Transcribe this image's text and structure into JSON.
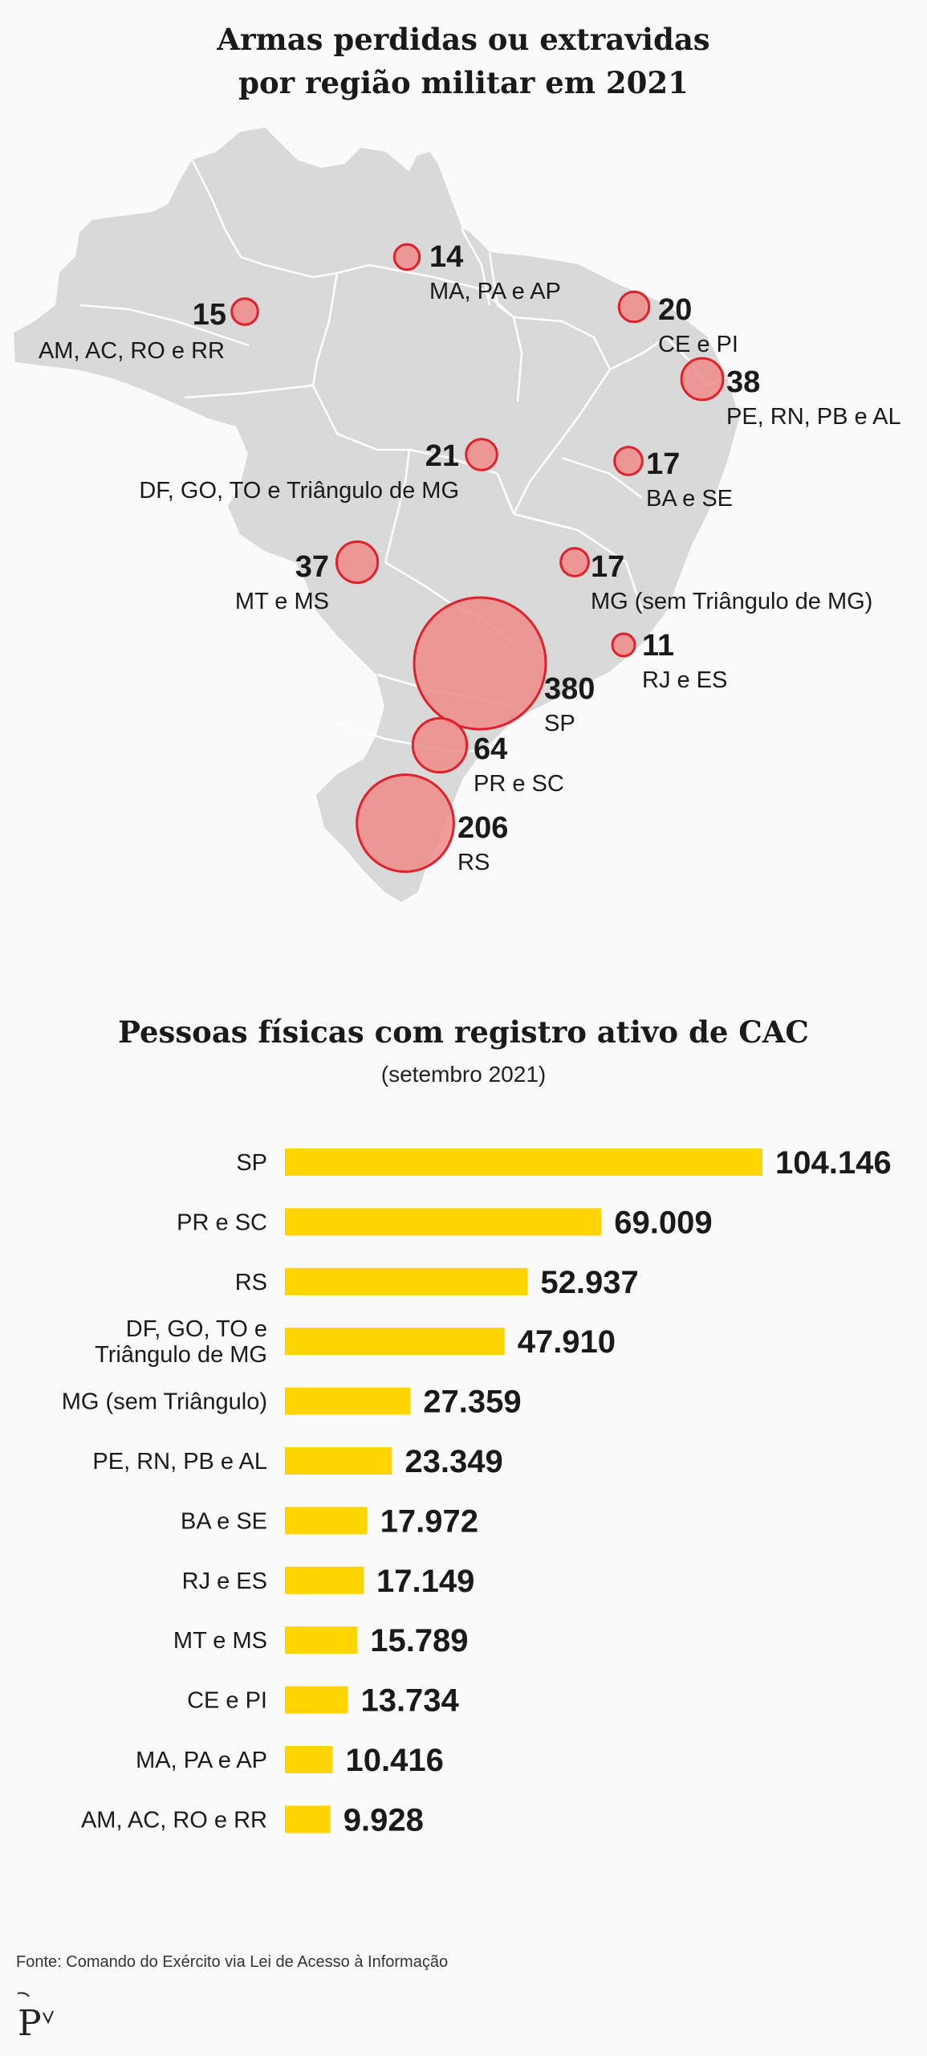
{
  "chart_data": [
    {
      "type": "bubble-map",
      "title_lines": [
        "Armas perdidas ou extravidas",
        "por região militar em 2021"
      ],
      "regions": [
        {
          "value": 14,
          "label": "MA, PA e AP"
        },
        {
          "value": 15,
          "label": "AM, AC, RO e RR"
        },
        {
          "value": 20,
          "label": "CE e PI"
        },
        {
          "value": 38,
          "label": "PE, RN, PB e AL"
        },
        {
          "value": 21,
          "label": "DF, GO, TO e Triângulo de MG"
        },
        {
          "value": 17,
          "label": "BA e SE"
        },
        {
          "value": 37,
          "label": "MT e MS"
        },
        {
          "value": 17,
          "label": "MG (sem Triângulo de MG)"
        },
        {
          "value": 11,
          "label": "RJ e ES"
        },
        {
          "value": 380,
          "label": "SP"
        },
        {
          "value": 64,
          "label": "PR e SC"
        },
        {
          "value": 206,
          "label": "RS"
        }
      ],
      "colors": {
        "bubble_fill": "#f08a8a",
        "bubble_stroke": "#e0202a",
        "land": "#d9d9d9",
        "borders": "#ffffff"
      }
    },
    {
      "type": "bar",
      "orientation": "horizontal",
      "title": "Pessoas físicas com registro ativo de CAC",
      "subtitle": "(setembro 2021)",
      "categories": [
        "SP",
        "PR e SC",
        "RS",
        "DF, GO, TO e\nTriângulo de MG",
        "MG (sem Triângulo)",
        "PE, RN, PB e AL",
        "BA e SE",
        "RJ e ES",
        "MT e MS",
        "CE e PI",
        "MA, PA e AP",
        "AM, AC, RO e RR"
      ],
      "values": [
        104146,
        69009,
        52937,
        47910,
        27359,
        23349,
        17972,
        17149,
        15789,
        13734,
        10416,
        9928
      ],
      "value_labels": [
        "104.146",
        "69.009",
        "52.937",
        "47.910",
        "27.359",
        "23.349",
        "17.972",
        "17.149",
        "15.789",
        "13.734",
        "10.416",
        "9.928"
      ],
      "colors": {
        "bar": "#ffd400"
      }
    }
  ],
  "source": "Fonte: Comando do Exército via Lei de Acesso à Informação",
  "logo_text": "P"
}
